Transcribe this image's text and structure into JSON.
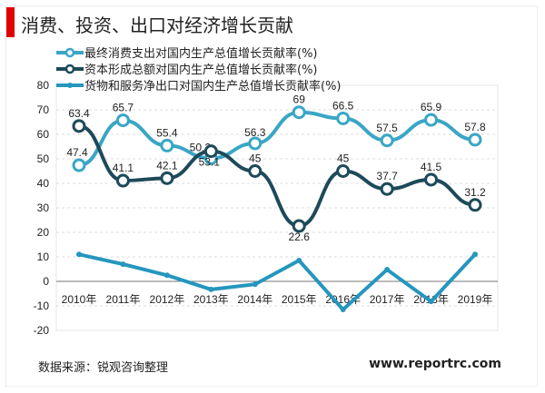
{
  "title": "消费、投资、出口对经济增长贡献",
  "source": "数据来源：锐观咨询整理",
  "website": "www.reportrc.com",
  "chart_data": {
    "type": "line",
    "title": "消费、投资、出口对经济增长贡献",
    "categories": [
      "2010年",
      "2011年",
      "2012年",
      "2013年",
      "2014年",
      "2015年",
      "2016年",
      "2017年",
      "2018年",
      "2019年"
    ],
    "ylim": [
      -20,
      80
    ],
    "yticks": [
      80,
      70,
      60,
      50,
      40,
      30,
      20,
      10,
      0,
      -10,
      -20
    ],
    "legend_position": "top",
    "series": [
      {
        "name": "最终消费支出对国内生产总值增长贡献率(%)",
        "color": "#3aa6c6",
        "marker": "open",
        "values": [
          47.4,
          65.7,
          55.4,
          50.2,
          56.3,
          69,
          66.5,
          57.5,
          65.9,
          57.8
        ],
        "labels": true
      },
      {
        "name": "资本形成总额对国内生产总值增长贡献率(%)",
        "color": "#1d4a5a",
        "marker": "open",
        "values": [
          63.4,
          41.1,
          42.1,
          53.1,
          45,
          22.6,
          45,
          37.7,
          41.5,
          31.2
        ],
        "labels": true
      },
      {
        "name": "货物和服务净出口对国内生产总值增长贡献率(%)",
        "color": "#2596be",
        "marker": "dot",
        "values": [
          11,
          7,
          2.5,
          -3.3,
          -1.2,
          8.5,
          -11.5,
          4.8,
          -8.2,
          11
        ],
        "labels": false
      }
    ]
  }
}
